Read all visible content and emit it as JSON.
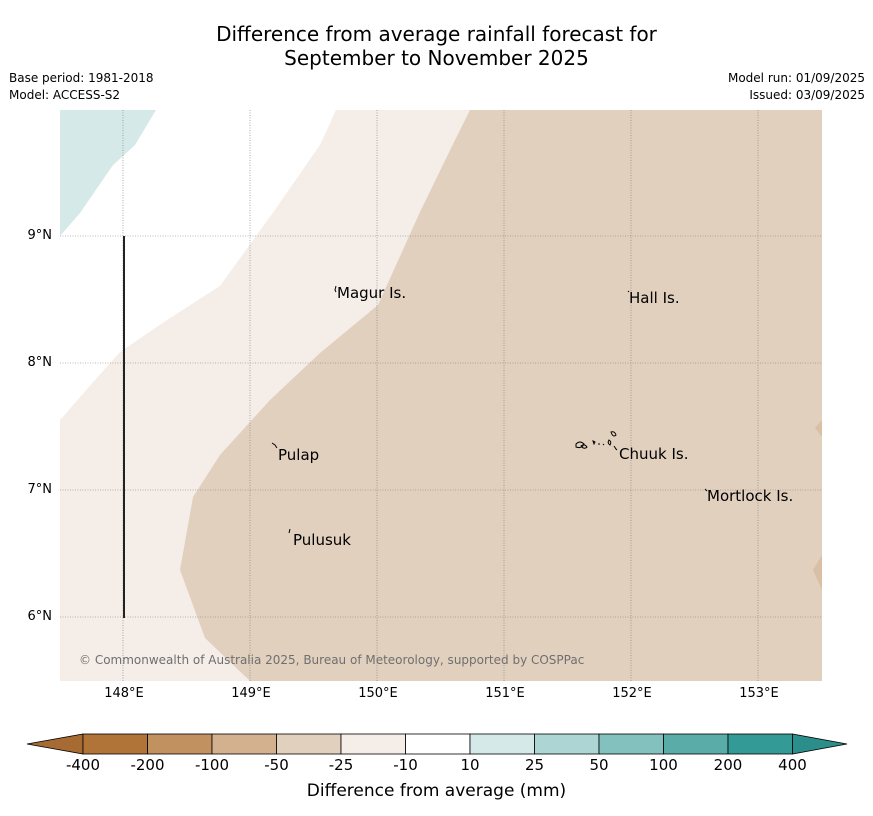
{
  "title_line1": "Difference from average rainfall forecast for",
  "title_line2": "September to November 2025",
  "base_period": "Base period: 1981-2018",
  "model": "Model: ACCESS-S2",
  "model_run": "Model run: 01/09/2025",
  "issued": "Issued: 03/09/2025",
  "lat_labels": [
    "9°N",
    "8°N",
    "7°N",
    "6°N"
  ],
  "lon_labels": [
    "148°E",
    "149°E",
    "150°E",
    "151°E",
    "152°E",
    "153°E"
  ],
  "places": {
    "magur": "Magur Is.",
    "hall": "Hall Is.",
    "pulap": "Pulap",
    "chuuk": "Chuuk Is.",
    "mortlock": "Mortlock Is.",
    "pulusuk": "Pulusuk"
  },
  "copyright": "© Commonwealth of Australia 2025, Bureau of Meteorology, supported by COSPPac",
  "legend": {
    "title": "Difference from average (mm)",
    "ticks": [
      "-400",
      "-200",
      "-100",
      "-50",
      "-25",
      "-10",
      "10",
      "25",
      "50",
      "100",
      "200",
      "400"
    ],
    "colors": [
      "#a66b33",
      "#b07438",
      "#c1915f",
      "#d3b08e",
      "#e2d0bf",
      "#f5ede8",
      "#ffffff",
      "#d4e9e8",
      "#acd5d3",
      "#82c1be",
      "#5aaca9",
      "#339a96",
      "#2b8e8a"
    ]
  },
  "map_colors": {
    "dry_light": "#f5ede8",
    "dry_medium": "#e2d0bf",
    "wet_light": "#d4e9e8",
    "neutral": "#ffffff"
  }
}
